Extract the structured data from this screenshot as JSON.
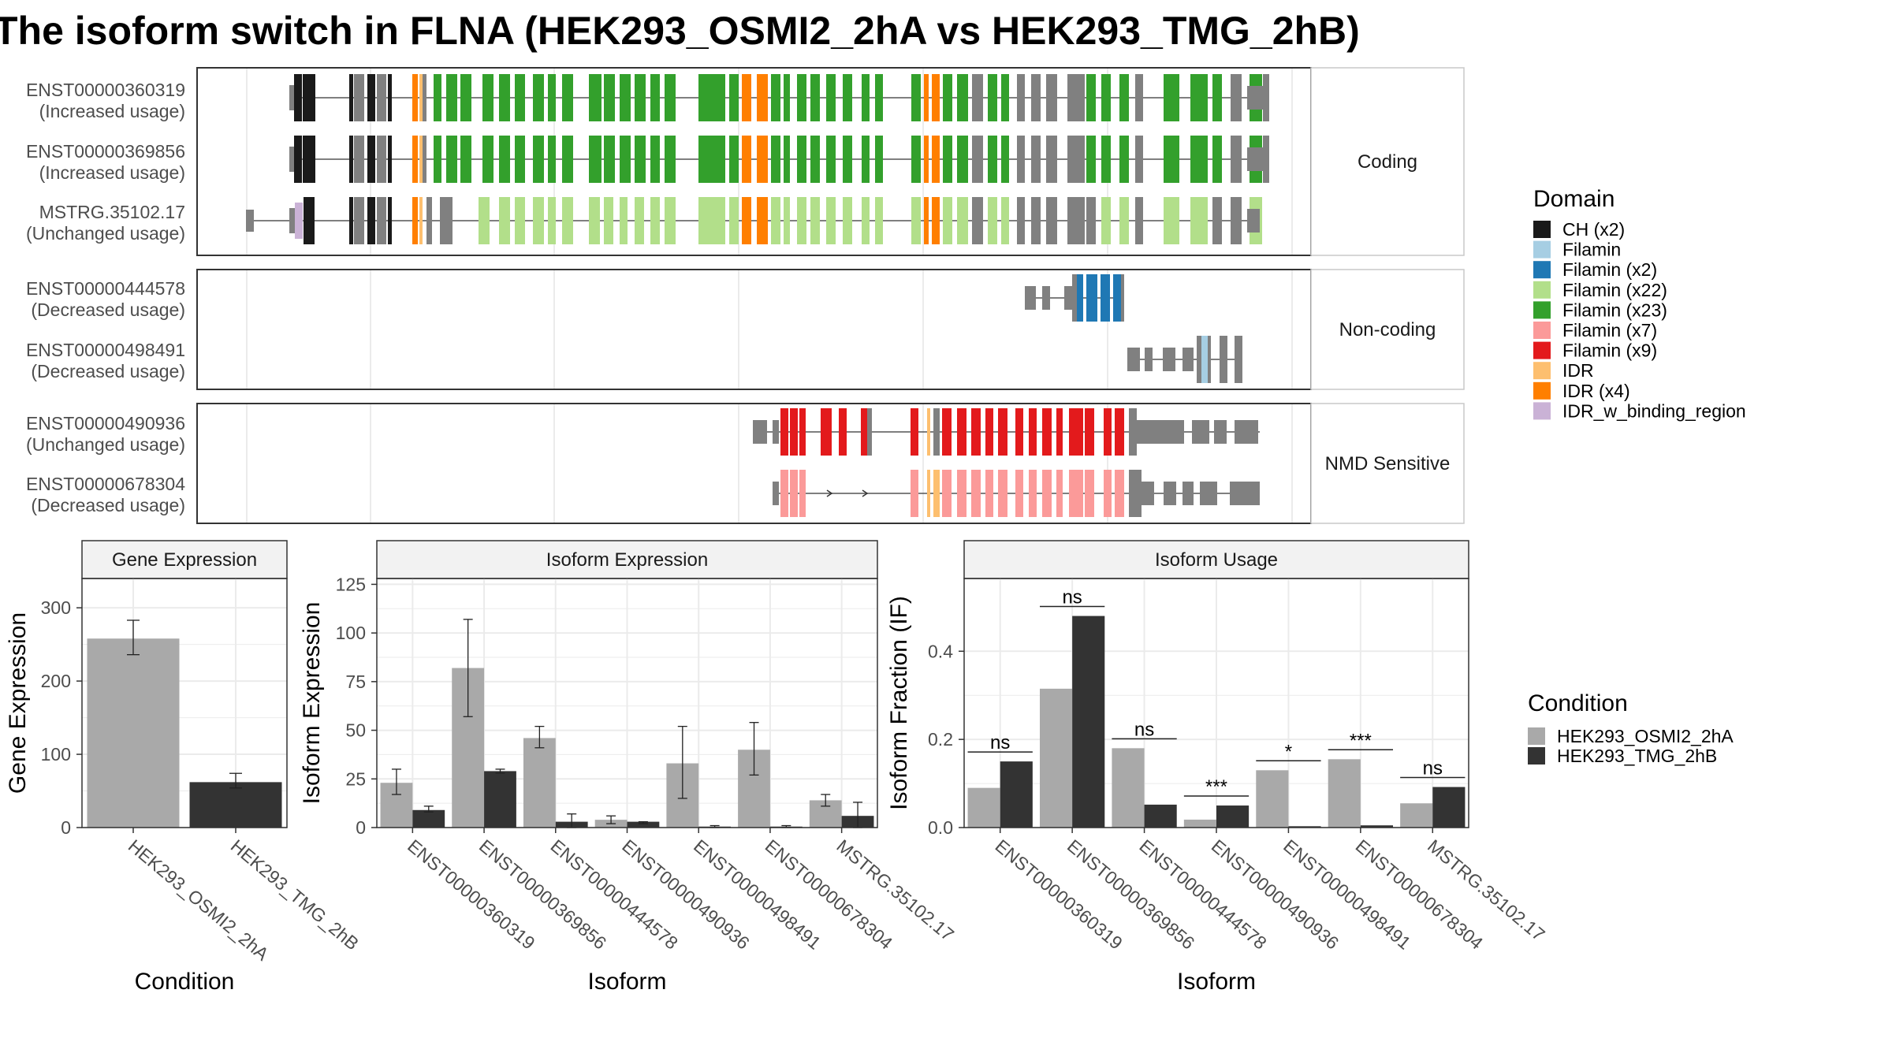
{
  "title": "The isoform switch in FLNA (HEK293_OSMI2_2hA vs HEK293_TMG_2hB)",
  "colors": {
    "cond_a": "#a9a9a9",
    "cond_b": "#333333",
    "grey_feature": "#808080",
    "panel_border": "#333333",
    "strip_fill": "#f2f2f2",
    "grid": "#ebebeb"
  },
  "structure": {
    "groups": [
      {
        "label": "Coding",
        "tracks": [
          {
            "id": "ENST00000360319",
            "status": "(Increased usage)"
          },
          {
            "id": "ENST00000369856",
            "status": "(Increased usage)"
          },
          {
            "id": "MSTRG.35102.17",
            "status": "(Unchanged usage)"
          }
        ]
      },
      {
        "label": "Non-coding",
        "tracks": [
          {
            "id": "ENST00000444578",
            "status": "(Decreased usage)"
          },
          {
            "id": "ENST00000498491",
            "status": "(Decreased usage)"
          }
        ]
      },
      {
        "label": "NMD Sensitive",
        "tracks": [
          {
            "id": "ENST00000490936",
            "status": "(Unchanged usage)"
          },
          {
            "id": "ENST00000678304",
            "status": "(Decreased usage)"
          }
        ]
      }
    ]
  },
  "domain_legend": {
    "title": "Domain",
    "items": [
      {
        "label": "CH (x2)",
        "color": "#1a1a1a"
      },
      {
        "label": "Filamin",
        "color": "#a6cee3"
      },
      {
        "label": "Filamin (x2)",
        "color": "#1f78b4"
      },
      {
        "label": "Filamin (x22)",
        "color": "#b2df8a"
      },
      {
        "label": "Filamin (x23)",
        "color": "#33a02c"
      },
      {
        "label": "Filamin (x7)",
        "color": "#fb9a99"
      },
      {
        "label": "Filamin (x9)",
        "color": "#e31a1c"
      },
      {
        "label": "IDR",
        "color": "#fdbf6f"
      },
      {
        "label": "IDR (x4)",
        "color": "#ff7f00"
      },
      {
        "label": "IDR_w_binding_region",
        "color": "#cab2d6"
      }
    ]
  },
  "condition_legend": {
    "title": "Condition",
    "items": [
      {
        "label": "HEK293_OSMI2_2hA",
        "color": "#a9a9a9"
      },
      {
        "label": "HEK293_TMG_2hB",
        "color": "#333333"
      }
    ]
  },
  "chart_data": [
    {
      "type": "bar",
      "title": "Gene Expression",
      "xlabel": "Condition",
      "ylabel": "Gene Expression",
      "ylim": [
        0,
        340
      ],
      "yticks": [
        0,
        100,
        200,
        300
      ],
      "categories": [
        "HEK293_OSMI2_2hA",
        "HEK293_TMG_2hB"
      ],
      "values": [
        258,
        62
      ],
      "err_low": [
        236,
        54
      ],
      "err_high": [
        283,
        74
      ]
    },
    {
      "type": "bar",
      "title": "Isoform Expression",
      "xlabel": "Isoform",
      "ylabel": "Isoform Expression",
      "ylim": [
        0,
        128
      ],
      "yticks": [
        0,
        25,
        50,
        75,
        100,
        125
      ],
      "categories": [
        "ENST00000360319",
        "ENST00000369856",
        "ENST00000444578",
        "ENST00000490936",
        "ENST00000498491",
        "ENST00000678304",
        "MSTRG.35102.17"
      ],
      "series": [
        {
          "name": "HEK293_OSMI2_2hA",
          "values": [
            23,
            82,
            46,
            4,
            33,
            40,
            14
          ],
          "err_low": [
            17,
            57,
            41,
            2,
            15,
            27,
            11
          ],
          "err_high": [
            30,
            107,
            52,
            6,
            52,
            54,
            17
          ]
        },
        {
          "name": "HEK293_TMG_2hB",
          "values": [
            9,
            29,
            3,
            3,
            0.5,
            0.5,
            6
          ],
          "err_low": [
            8,
            28,
            0,
            2,
            0,
            0,
            0
          ],
          "err_high": [
            11,
            30,
            7,
            3,
            1,
            1,
            13
          ]
        }
      ]
    },
    {
      "type": "bar",
      "title": "Isoform Usage",
      "xlabel": "Isoform",
      "ylabel": "Isoform Fraction (IF)",
      "ylim": [
        0,
        0.565
      ],
      "yticks": [
        0.0,
        0.2,
        0.4
      ],
      "ytick_labels": [
        "0.0",
        "0.2",
        "0.4"
      ],
      "categories": [
        "ENST00000360319",
        "ENST00000369856",
        "ENST00000444578",
        "ENST00000490936",
        "ENST00000498491",
        "ENST00000678304",
        "MSTRG.35102.17"
      ],
      "series": [
        {
          "name": "HEK293_OSMI2_2hA",
          "values": [
            0.09,
            0.315,
            0.18,
            0.018,
            0.13,
            0.155,
            0.055
          ]
        },
        {
          "name": "HEK293_TMG_2hB",
          "values": [
            0.15,
            0.48,
            0.052,
            0.05,
            0.003,
            0.005,
            0.092
          ]
        }
      ],
      "significance": [
        "ns",
        "ns",
        "ns",
        "***",
        "*",
        "***",
        "ns"
      ]
    }
  ]
}
